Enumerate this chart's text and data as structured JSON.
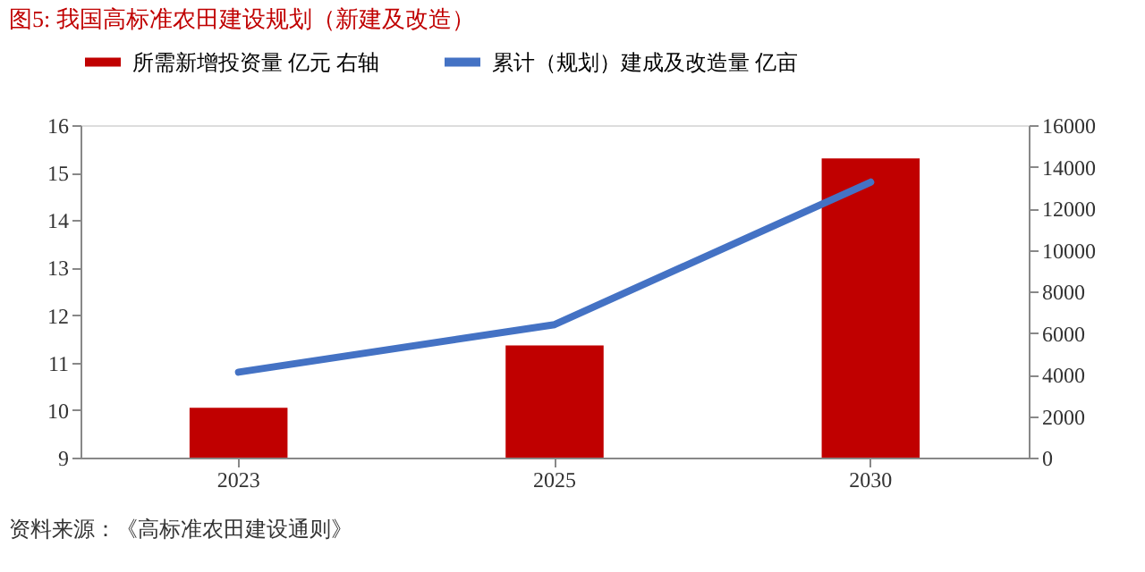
{
  "chart_data": {
    "type": "bar",
    "title": "图5:   我国高标准农田建设规划（新建及改造）",
    "categories": [
      "2023",
      "2025",
      "2030"
    ],
    "series": [
      {
        "name": "所需新增投资量  亿元  右轴",
        "axis": "y2",
        "color": "#c00000",
        "values": [
          2400,
          5400,
          14400
        ]
      },
      {
        "name": "累计（规划）建成及改造量  亿亩",
        "type": "line",
        "color": "#4472c4",
        "values": [
          10.8,
          11.8,
          14.8
        ]
      }
    ],
    "ylim": [
      9,
      16
    ],
    "yticks": [
      9,
      10,
      11,
      12,
      13,
      14,
      15,
      16
    ],
    "y2lim": [
      0,
      16000
    ],
    "y2ticks": [
      0,
      2000,
      4000,
      6000,
      8000,
      10000,
      12000,
      14000,
      16000
    ],
    "grid": false,
    "legend": "top",
    "annotations": [
      "资料来源：《高标准农田建设通则》"
    ]
  }
}
